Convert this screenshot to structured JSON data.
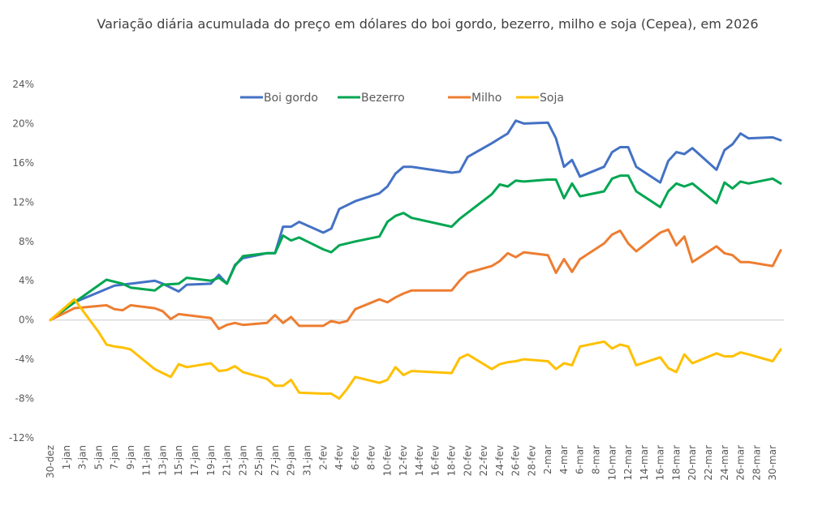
{
  "chart_data": {
    "type": "line",
    "title": "Variação diária acumulada do preço em dólares do boi gordo, bezerro, milho e soja (Cepea), em 2026",
    "xlabel": "",
    "ylabel": "",
    "x_unit": "days since 30-dez",
    "ylim": [
      -12,
      24
    ],
    "y_ticks": [
      -12,
      -8,
      -4,
      0,
      4,
      8,
      12,
      16,
      20,
      24
    ],
    "y_tick_labels": [
      "-12%",
      "-8%",
      "-4%",
      "0%",
      "4%",
      "8%",
      "12%",
      "16%",
      "20%",
      "24%"
    ],
    "x_tick_labels": [
      "30-dez",
      "1-jan",
      "3-jan",
      "5-jan",
      "7-jan",
      "9-jan",
      "11-jan",
      "13-jan",
      "15-jan",
      "17-jan",
      "19-jan",
      "21-jan",
      "23-jan",
      "25-jan",
      "27-jan",
      "29-jan",
      "31-jan",
      "2-fev",
      "4-fev",
      "6-fev",
      "8-fev",
      "10-fev",
      "12-fev",
      "14-fev",
      "16-fev",
      "18-fev",
      "20-fev",
      "22-fev",
      "24-fev",
      "26-fev",
      "28-fev",
      "2-mar",
      "4-mar",
      "6-mar",
      "8-mar",
      "10-mar",
      "12-mar",
      "14-mar",
      "16-mar",
      "18-mar",
      "20-mar",
      "22-mar",
      "24-mar",
      "26-mar",
      "28-mar",
      "30-mar"
    ],
    "xlim": [
      0,
      91
    ],
    "grid": "zero line only",
    "legend": "top-center",
    "series": [
      {
        "name": "Boi gordo",
        "color": "#4472C4",
        "points": [
          [
            0,
            0
          ],
          [
            3,
            1.8
          ],
          [
            8,
            3.5
          ],
          [
            9,
            3.6
          ],
          [
            13,
            4.0
          ],
          [
            14,
            3.7
          ],
          [
            16,
            2.9
          ],
          [
            17,
            3.6
          ],
          [
            20,
            3.7
          ],
          [
            21,
            4.6
          ],
          [
            22,
            3.7
          ],
          [
            23,
            5.6
          ],
          [
            24,
            6.3
          ],
          [
            27,
            6.8
          ],
          [
            28,
            6.8
          ],
          [
            29,
            9.5
          ],
          [
            30,
            9.5
          ],
          [
            31,
            10.0
          ],
          [
            34,
            8.9
          ],
          [
            35,
            9.3
          ],
          [
            36,
            11.3
          ],
          [
            38,
            12.1
          ],
          [
            41,
            12.9
          ],
          [
            42,
            13.6
          ],
          [
            43,
            14.9
          ],
          [
            44,
            15.6
          ],
          [
            45,
            15.6
          ],
          [
            50,
            15.0
          ],
          [
            51,
            15.1
          ],
          [
            52,
            16.6
          ],
          [
            55,
            18.0
          ],
          [
            56,
            18.5
          ],
          [
            57,
            19.0
          ],
          [
            58,
            20.3
          ],
          [
            59,
            20.0
          ],
          [
            62,
            20.1
          ],
          [
            63,
            18.5
          ],
          [
            64,
            15.6
          ],
          [
            65,
            16.3
          ],
          [
            66,
            14.6
          ],
          [
            69,
            15.6
          ],
          [
            70,
            17.1
          ],
          [
            71,
            17.6
          ],
          [
            72,
            17.6
          ],
          [
            73,
            15.6
          ],
          [
            76,
            14.0
          ],
          [
            77,
            16.2
          ],
          [
            78,
            17.1
          ],
          [
            79,
            16.9
          ],
          [
            80,
            17.5
          ],
          [
            83,
            15.3
          ],
          [
            84,
            17.3
          ],
          [
            85,
            17.9
          ],
          [
            86,
            19.0
          ],
          [
            87,
            18.5
          ],
          [
            90,
            18.6
          ],
          [
            91,
            18.3
          ]
        ]
      },
      {
        "name": "Bezerro",
        "color": "#00A651",
        "points": [
          [
            0,
            0
          ],
          [
            3,
            1.8
          ],
          [
            7,
            4.1
          ],
          [
            9,
            3.7
          ],
          [
            10,
            3.3
          ],
          [
            13,
            3.0
          ],
          [
            14,
            3.6
          ],
          [
            16,
            3.7
          ],
          [
            17,
            4.3
          ],
          [
            20,
            4.0
          ],
          [
            21,
            4.3
          ],
          [
            22,
            3.7
          ],
          [
            23,
            5.5
          ],
          [
            24,
            6.5
          ],
          [
            27,
            6.8
          ],
          [
            28,
            6.8
          ],
          [
            29,
            8.6
          ],
          [
            30,
            8.1
          ],
          [
            31,
            8.4
          ],
          [
            34,
            7.2
          ],
          [
            35,
            6.9
          ],
          [
            36,
            7.6
          ],
          [
            38,
            8.0
          ],
          [
            41,
            8.5
          ],
          [
            42,
            10.0
          ],
          [
            43,
            10.6
          ],
          [
            44,
            10.9
          ],
          [
            45,
            10.4
          ],
          [
            50,
            9.5
          ],
          [
            51,
            10.3
          ],
          [
            55,
            12.8
          ],
          [
            56,
            13.8
          ],
          [
            57,
            13.6
          ],
          [
            58,
            14.2
          ],
          [
            59,
            14.1
          ],
          [
            62,
            14.3
          ],
          [
            63,
            14.3
          ],
          [
            64,
            12.4
          ],
          [
            65,
            13.9
          ],
          [
            66,
            12.6
          ],
          [
            69,
            13.1
          ],
          [
            70,
            14.4
          ],
          [
            71,
            14.7
          ],
          [
            72,
            14.7
          ],
          [
            73,
            13.1
          ],
          [
            76,
            11.5
          ],
          [
            77,
            13.1
          ],
          [
            78,
            13.9
          ],
          [
            79,
            13.6
          ],
          [
            80,
            13.9
          ],
          [
            83,
            11.9
          ],
          [
            84,
            14.0
          ],
          [
            85,
            13.4
          ],
          [
            86,
            14.1
          ],
          [
            87,
            13.9
          ],
          [
            90,
            14.4
          ],
          [
            91,
            13.9
          ]
        ]
      },
      {
        "name": "Milho",
        "color": "#ED7D31",
        "points": [
          [
            0,
            0
          ],
          [
            3,
            1.2
          ],
          [
            7,
            1.5
          ],
          [
            8,
            1.1
          ],
          [
            9,
            1.0
          ],
          [
            10,
            1.5
          ],
          [
            13,
            1.2
          ],
          [
            14,
            0.9
          ],
          [
            15,
            0.1
          ],
          [
            16,
            0.6
          ],
          [
            20,
            0.2
          ],
          [
            21,
            -0.9
          ],
          [
            22,
            -0.5
          ],
          [
            23,
            -0.3
          ],
          [
            24,
            -0.5
          ],
          [
            27,
            -0.3
          ],
          [
            28,
            0.5
          ],
          [
            29,
            -0.3
          ],
          [
            30,
            0.3
          ],
          [
            31,
            -0.6
          ],
          [
            34,
            -0.6
          ],
          [
            35,
            -0.1
          ],
          [
            36,
            -0.3
          ],
          [
            37,
            -0.1
          ],
          [
            38,
            1.1
          ],
          [
            41,
            2.1
          ],
          [
            42,
            1.8
          ],
          [
            43,
            2.3
          ],
          [
            44,
            2.7
          ],
          [
            45,
            3.0
          ],
          [
            50,
            3.0
          ],
          [
            51,
            4.0
          ],
          [
            52,
            4.8
          ],
          [
            55,
            5.5
          ],
          [
            56,
            6.0
          ],
          [
            57,
            6.8
          ],
          [
            58,
            6.4
          ],
          [
            59,
            6.9
          ],
          [
            62,
            6.6
          ],
          [
            63,
            4.8
          ],
          [
            64,
            6.2
          ],
          [
            65,
            4.9
          ],
          [
            66,
            6.2
          ],
          [
            69,
            7.8
          ],
          [
            70,
            8.7
          ],
          [
            71,
            9.1
          ],
          [
            72,
            7.8
          ],
          [
            73,
            7.0
          ],
          [
            76,
            8.9
          ],
          [
            77,
            9.2
          ],
          [
            78,
            7.6
          ],
          [
            79,
            8.5
          ],
          [
            80,
            5.9
          ],
          [
            83,
            7.5
          ],
          [
            84,
            6.8
          ],
          [
            85,
            6.6
          ],
          [
            86,
            5.9
          ],
          [
            87,
            5.9
          ],
          [
            90,
            5.5
          ],
          [
            91,
            7.1
          ]
        ]
      },
      {
        "name": "Soja",
        "color": "#FFC000",
        "points": [
          [
            0,
            0
          ],
          [
            3,
            2.1
          ],
          [
            6,
            -1.2
          ],
          [
            7,
            -2.5
          ],
          [
            8,
            -2.7
          ],
          [
            9,
            -2.8
          ],
          [
            10,
            -3.0
          ],
          [
            13,
            -5.0
          ],
          [
            14,
            -5.4
          ],
          [
            15,
            -5.8
          ],
          [
            16,
            -4.5
          ],
          [
            17,
            -4.8
          ],
          [
            20,
            -4.4
          ],
          [
            21,
            -5.2
          ],
          [
            22,
            -5.1
          ],
          [
            23,
            -4.7
          ],
          [
            24,
            -5.3
          ],
          [
            27,
            -6.0
          ],
          [
            28,
            -6.7
          ],
          [
            29,
            -6.7
          ],
          [
            30,
            -6.1
          ],
          [
            31,
            -7.4
          ],
          [
            34,
            -7.5
          ],
          [
            35,
            -7.5
          ],
          [
            36,
            -8.0
          ],
          [
            37,
            -7.0
          ],
          [
            38,
            -5.8
          ],
          [
            41,
            -6.4
          ],
          [
            42,
            -6.1
          ],
          [
            43,
            -4.8
          ],
          [
            44,
            -5.6
          ],
          [
            45,
            -5.2
          ],
          [
            50,
            -5.4
          ],
          [
            51,
            -3.9
          ],
          [
            52,
            -3.5
          ],
          [
            55,
            -5.0
          ],
          [
            56,
            -4.5
          ],
          [
            57,
            -4.3
          ],
          [
            58,
            -4.2
          ],
          [
            59,
            -4.0
          ],
          [
            62,
            -4.2
          ],
          [
            63,
            -5.0
          ],
          [
            64,
            -4.4
          ],
          [
            65,
            -4.6
          ],
          [
            66,
            -2.7
          ],
          [
            69,
            -2.2
          ],
          [
            70,
            -2.9
          ],
          [
            71,
            -2.5
          ],
          [
            72,
            -2.7
          ],
          [
            73,
            -4.6
          ],
          [
            76,
            -3.8
          ],
          [
            77,
            -4.9
          ],
          [
            78,
            -5.3
          ],
          [
            79,
            -3.5
          ],
          [
            80,
            -4.4
          ],
          [
            83,
            -3.4
          ],
          [
            84,
            -3.7
          ],
          [
            85,
            -3.7
          ],
          [
            86,
            -3.3
          ],
          [
            87,
            -3.5
          ],
          [
            90,
            -4.2
          ],
          [
            91,
            -3.0
          ]
        ]
      }
    ]
  }
}
